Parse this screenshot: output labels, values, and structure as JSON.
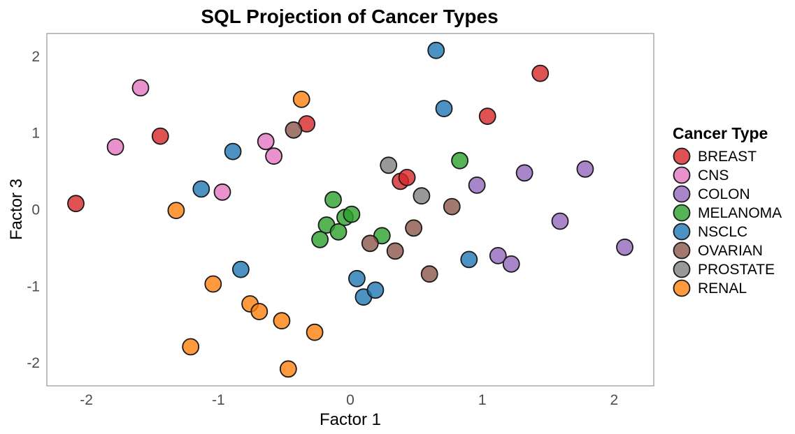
{
  "chart_data": {
    "type": "scatter",
    "title": "SQL Projection of Cancer Types",
    "xlabel": "Factor 1",
    "ylabel": "Factor 3",
    "xlim": [
      -2.3,
      2.3
    ],
    "ylim": [
      -2.3,
      2.3
    ],
    "xticks": [
      "-2",
      "-1",
      "0",
      "1",
      "2"
    ],
    "xtick_values": [
      -2,
      -1,
      0,
      1,
      2
    ],
    "yticks": [
      "-2",
      "-1",
      "0",
      "1",
      "2"
    ],
    "ytick_values": [
      -2,
      -1,
      0,
      1,
      2
    ],
    "grid": false,
    "legend": {
      "title": "Cancer Type",
      "placement": "right"
    },
    "series": [
      {
        "name": "BREAST",
        "color": "#d62728",
        "points": [
          [
            -2.08,
            0.08
          ],
          [
            -1.44,
            0.96
          ],
          [
            -0.33,
            1.12
          ],
          [
            0.38,
            0.37
          ],
          [
            0.43,
            0.42
          ],
          [
            1.04,
            1.22
          ],
          [
            1.44,
            1.78
          ]
        ]
      },
      {
        "name": "CNS",
        "color": "#e377c2",
        "points": [
          [
            -1.78,
            0.82
          ],
          [
            -1.59,
            1.59
          ],
          [
            -0.97,
            0.23
          ],
          [
            -0.64,
            0.89
          ],
          [
            -0.58,
            0.7
          ]
        ]
      },
      {
        "name": "COLON",
        "color": "#9467bd",
        "points": [
          [
            0.96,
            0.32
          ],
          [
            1.12,
            -0.6
          ],
          [
            1.22,
            -0.71
          ],
          [
            1.32,
            0.48
          ],
          [
            1.59,
            -0.15
          ],
          [
            1.78,
            0.53
          ],
          [
            2.08,
            -0.49
          ]
        ]
      },
      {
        "name": "MELANOMA",
        "color": "#2ca02c",
        "points": [
          [
            -0.13,
            0.13
          ],
          [
            -0.18,
            -0.2
          ],
          [
            -0.23,
            -0.39
          ],
          [
            -0.09,
            -0.29
          ],
          [
            -0.04,
            -0.1
          ],
          [
            0.01,
            -0.06
          ],
          [
            0.24,
            -0.34
          ],
          [
            0.83,
            0.64
          ]
        ]
      },
      {
        "name": "NSCLC",
        "color": "#1f77b4",
        "points": [
          [
            -1.13,
            0.27
          ],
          [
            -0.89,
            0.76
          ],
          [
            -0.83,
            -0.78
          ],
          [
            0.05,
            -0.9
          ],
          [
            0.1,
            -1.14
          ],
          [
            0.19,
            -1.05
          ],
          [
            0.65,
            2.08
          ],
          [
            0.71,
            1.32
          ],
          [
            0.9,
            -0.65
          ]
        ]
      },
      {
        "name": "OVARIAN",
        "color": "#8c564b",
        "points": [
          [
            -0.43,
            1.04
          ],
          [
            0.15,
            -0.44
          ],
          [
            0.34,
            -0.54
          ],
          [
            0.48,
            -0.24
          ],
          [
            0.6,
            -0.84
          ],
          [
            0.77,
            0.04
          ]
        ]
      },
      {
        "name": "PROSTATE",
        "color": "#7f7f7f",
        "points": [
          [
            0.29,
            0.58
          ],
          [
            0.54,
            0.18
          ]
        ]
      },
      {
        "name": "RENAL",
        "color": "#ff7f0e",
        "points": [
          [
            -1.32,
            -0.01
          ],
          [
            -1.21,
            -1.79
          ],
          [
            -1.04,
            -0.97
          ],
          [
            -0.76,
            -1.23
          ],
          [
            -0.69,
            -1.33
          ],
          [
            -0.52,
            -1.45
          ],
          [
            -0.47,
            -2.08
          ],
          [
            -0.37,
            1.44
          ],
          [
            -0.27,
            -1.6
          ]
        ]
      }
    ]
  }
}
